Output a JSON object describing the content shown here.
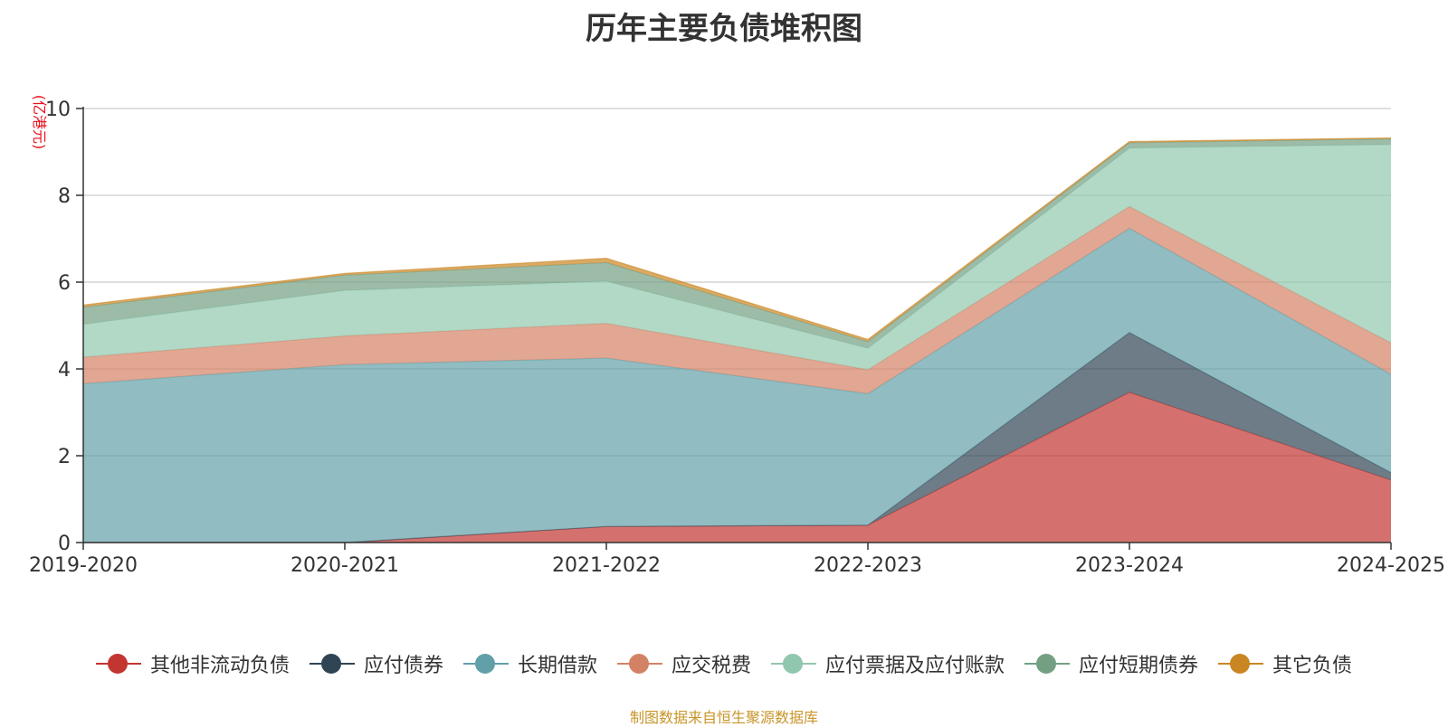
{
  "chart_data": {
    "type": "area",
    "stacked": true,
    "title": "历年主要负债堆积图",
    "ylabel": "(亿港元)",
    "ylim": [
      0,
      10
    ],
    "yticks": [
      0,
      2,
      4,
      6,
      8,
      10
    ],
    "grid": true,
    "legend_position": "bottom",
    "categories": [
      "2019-2020",
      "2020-2021",
      "2021-2022",
      "2022-2023",
      "2023-2024",
      "2024-2025"
    ],
    "series": [
      {
        "name": "其他非流动负债",
        "color": "#c23531",
        "values": [
          0,
          0,
          0.37,
          0.4,
          3.46,
          1.44
        ]
      },
      {
        "name": "应付债券",
        "color": "#2f4554",
        "values": [
          0,
          0,
          0,
          0,
          1.38,
          0.17
        ]
      },
      {
        "name": "长期借款",
        "color": "#61a0a8",
        "values": [
          3.66,
          4.1,
          3.88,
          3.03,
          2.4,
          2.27
        ]
      },
      {
        "name": "应交税费",
        "color": "#d48265",
        "values": [
          0.61,
          0.66,
          0.8,
          0.55,
          0.5,
          0.72
        ]
      },
      {
        "name": "应付票据及应付账款",
        "color": "#91c7ae",
        "values": [
          0.76,
          1.05,
          0.97,
          0.5,
          1.35,
          4.57
        ]
      },
      {
        "name": "应付短期债券",
        "color": "#749f83",
        "values": [
          0.39,
          0.35,
          0.43,
          0.15,
          0.12,
          0.13
        ]
      },
      {
        "name": "其它负债",
        "color": "#ca8622",
        "values": [
          0.05,
          0.04,
          0.1,
          0.05,
          0.03,
          0.02
        ]
      }
    ]
  },
  "footer": {
    "source": "制图数据来自恒生聚源数据库"
  }
}
